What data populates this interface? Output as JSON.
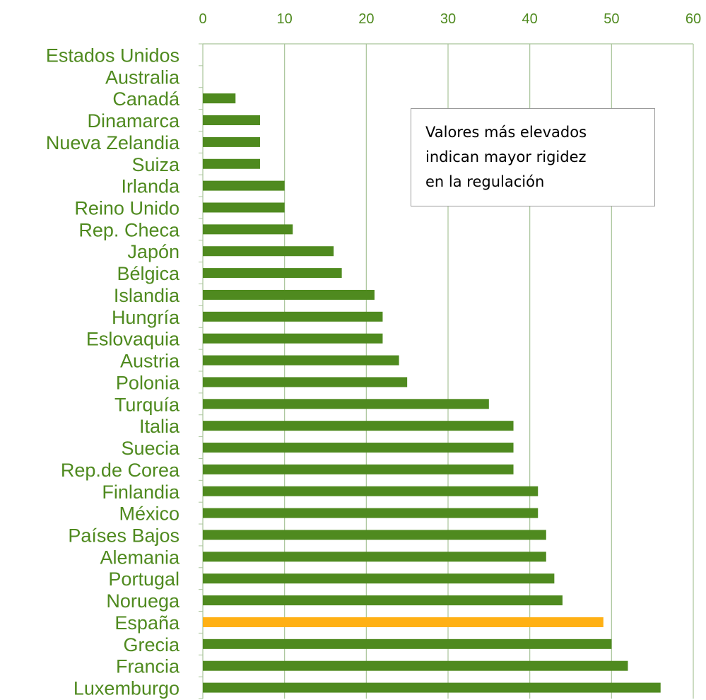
{
  "chart_data": {
    "type": "bar",
    "orientation": "horizontal",
    "categories": [
      "Estados Unidos",
      "Australia",
      "Canadá",
      "Dinamarca",
      "Nueva Zelandia",
      "Suiza",
      "Irlanda",
      "Reino Unido",
      "Rep. Checa",
      "Japón",
      "Bélgica",
      "Islandia",
      "Hungría",
      "Eslovaquia",
      "Austria",
      "Polonia",
      "Turquía",
      "Italia",
      "Suecia",
      "Rep.de Corea",
      "Finlandia",
      "México",
      "Países Bajos",
      "Alemania",
      "Portugal",
      "Noruega",
      "España",
      "Grecia",
      "Francia",
      "Luxemburgo"
    ],
    "values": [
      0,
      0,
      4,
      7,
      7,
      7,
      10,
      10,
      11,
      16,
      17,
      21,
      22,
      22,
      24,
      25,
      35,
      38,
      38,
      38,
      41,
      41,
      42,
      42,
      43,
      44,
      49,
      50,
      52,
      56
    ],
    "highlight_category": "España",
    "xlim": [
      0,
      60
    ],
    "x_ticks": [
      0,
      10,
      20,
      30,
      40,
      50,
      60
    ],
    "x_axis_position": "top",
    "grid": true,
    "title": "",
    "xlabel": "",
    "ylabel": "",
    "annotation": "Valores más elevados\nindican mayor rigidez\nen la regulación",
    "colors": {
      "bar": "#4f8a1f",
      "highlight": "#ffb014",
      "gridline": "#a9c49a",
      "tick_label": "#4f8a1f",
      "category_label": "#4f8a1f"
    }
  }
}
